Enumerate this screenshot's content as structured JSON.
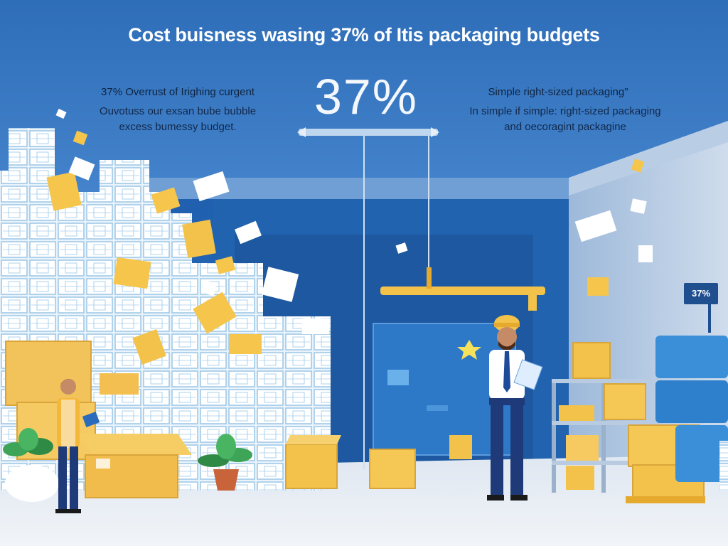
{
  "header": {
    "title": "Cost buisness wasing 37% of Itis packaging budgets",
    "big_stat": "37%"
  },
  "left_panel": {
    "heading": "37% Overrust of Irighing curgent",
    "body_line1": "Ouvotuss our exsan bube bubble",
    "body_line2": "excess bumessy budget."
  },
  "right_panel": {
    "heading": "Simple right-sized packaging\"",
    "body_line1": "In simple if simple: right-sized packaging",
    "body_line2": "and oecoragint packagine"
  },
  "wall_sign": {
    "label": "37%"
  },
  "colors": {
    "sky_blue": "#3f7fc7",
    "deep_blue": "#1e5ba6",
    "box_yellow": "#f3c24a",
    "floor": "#e8eef5"
  },
  "icon_names": [
    "worker-with-hard-hat-icon",
    "worker-with-tablet-icon",
    "cardboard-box-icon",
    "envelope-icon",
    "potted-plant-icon",
    "shelf-icon"
  ]
}
